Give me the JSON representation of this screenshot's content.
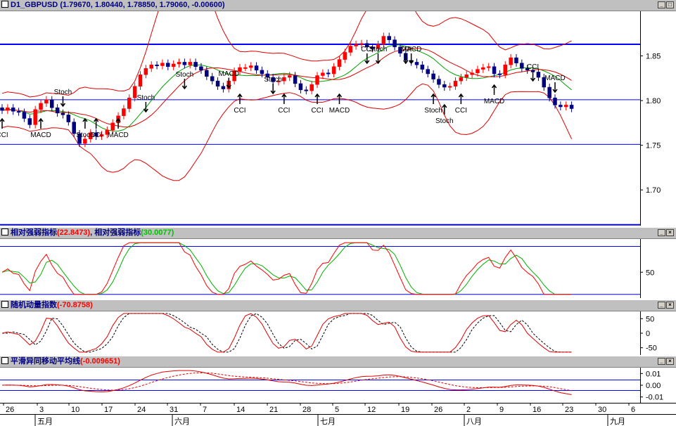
{
  "main": {
    "symbol": "D1_GBPUSD",
    "ohlc": "(1.79670, 1.80440, 1.78850, 1.79060, -0.00600)",
    "y_ticks": [
      "1.85",
      "1.80",
      "1.75",
      "1.70"
    ]
  },
  "rsi": {
    "title": "相对强弱指标",
    "value1": "(22.8473)",
    "title2": "相对强弱指标",
    "value2": "(30.0077)",
    "y_ticks": [
      "50"
    ]
  },
  "stoch": {
    "title": "随机动量指数",
    "value": "(-70.8758)",
    "y_ticks": [
      "50",
      "0",
      "-50"
    ]
  },
  "macd": {
    "title": "平滑异同移动平均线",
    "value": "(-0.009651)",
    "y_ticks": [
      "0.01",
      "0.00",
      "-0.01"
    ]
  },
  "xaxis": {
    "days": [
      "26",
      "3",
      "10",
      "17",
      "24",
      "31",
      "7",
      "14",
      "21",
      "28",
      "5",
      "12",
      "19",
      "26",
      "2",
      "9",
      "16",
      "23",
      "30",
      "6"
    ],
    "months": [
      "五月",
      "六月",
      "七月",
      "八月",
      "九月"
    ]
  },
  "chart_data": [
    {
      "type": "candlestick",
      "symbol": "GBPUSD",
      "timeframe": "D1",
      "last_bar": {
        "open": 1.7967,
        "high": 1.8044,
        "low": 1.7885,
        "close": 1.7906,
        "change": -0.006
      },
      "ylim": [
        1.66,
        1.9
      ],
      "horizontal_lines": [
        1.863,
        1.801,
        1.751,
        1.661
      ],
      "overlays": [
        "bollinger-bands",
        "moving-average"
      ],
      "closes_approx": [
        1.789,
        1.792,
        1.788,
        1.787,
        1.78,
        1.773,
        1.79,
        1.797,
        1.801,
        1.792,
        1.786,
        1.784,
        1.776,
        1.763,
        1.752,
        1.757,
        1.764,
        1.76,
        1.762,
        1.767,
        1.775,
        1.783,
        1.791,
        1.803,
        1.816,
        1.829,
        1.836,
        1.84,
        1.839,
        1.842,
        1.838,
        1.841,
        1.843,
        1.84,
        1.843,
        1.838,
        1.834,
        1.827,
        1.822,
        1.816,
        1.813,
        1.822,
        1.833,
        1.837,
        1.837,
        1.839,
        1.834,
        1.83,
        1.826,
        1.821,
        1.822,
        1.826,
        1.828,
        1.819,
        1.812,
        1.811,
        1.818,
        1.828,
        1.831,
        1.83,
        1.838,
        1.846,
        1.854,
        1.861,
        1.863,
        1.864,
        1.86,
        1.858,
        1.863,
        1.872,
        1.868,
        1.86,
        1.853,
        1.845,
        1.843,
        1.84,
        1.835,
        1.83,
        1.824,
        1.818,
        1.815,
        1.816,
        1.822,
        1.826,
        1.829,
        1.831,
        1.835,
        1.837,
        1.838,
        1.83,
        1.829,
        1.84,
        1.848,
        1.842,
        1.836,
        1.834,
        1.832,
        1.826,
        1.815,
        1.803,
        1.795,
        1.793,
        1.795,
        1.791
      ],
      "signals": [
        {
          "label": "CCI"
        },
        {
          "label": "MACD"
        },
        {
          "label": "Stoch"
        },
        {
          "label": "Stoch"
        },
        {
          "label": "CCI"
        },
        {
          "label": "MACD"
        },
        {
          "label": "Stoch"
        },
        {
          "label": "Stoch"
        },
        {
          "label": "MACD"
        },
        {
          "label": "CCI"
        },
        {
          "label": "Stoch"
        },
        {
          "label": "CCI"
        },
        {
          "label": "CCI"
        },
        {
          "label": "MACD"
        },
        {
          "label": "CCI"
        },
        {
          "label": "Stoch"
        },
        {
          "label": "CCI"
        },
        {
          "label": "MACD"
        },
        {
          "label": "Stoch"
        },
        {
          "label": "Stoch"
        },
        {
          "label": "CCI"
        },
        {
          "label": "MACD"
        },
        {
          "label": "CCI"
        },
        {
          "label": "MACD"
        }
      ]
    },
    {
      "type": "line",
      "name": "相对强弱指标",
      "last": [
        22.8473,
        30.0077
      ],
      "ylim": [
        15,
        95
      ],
      "horizontal_lines": [
        85,
        20
      ]
    },
    {
      "type": "line",
      "name": "随机动量指数",
      "last": -70.8758,
      "ylim": [
        -75,
        75
      ]
    },
    {
      "type": "line",
      "name": "平滑异同移动平均线",
      "last": -0.009651,
      "ylim": [
        -0.015,
        0.015
      ],
      "horizontal_lines": [
        0.0045,
        -0.0045
      ]
    }
  ],
  "colors": {
    "bull": "#ff0000",
    "bear": "#000080",
    "ma": "#00a000",
    "hline": "#0000ff"
  }
}
